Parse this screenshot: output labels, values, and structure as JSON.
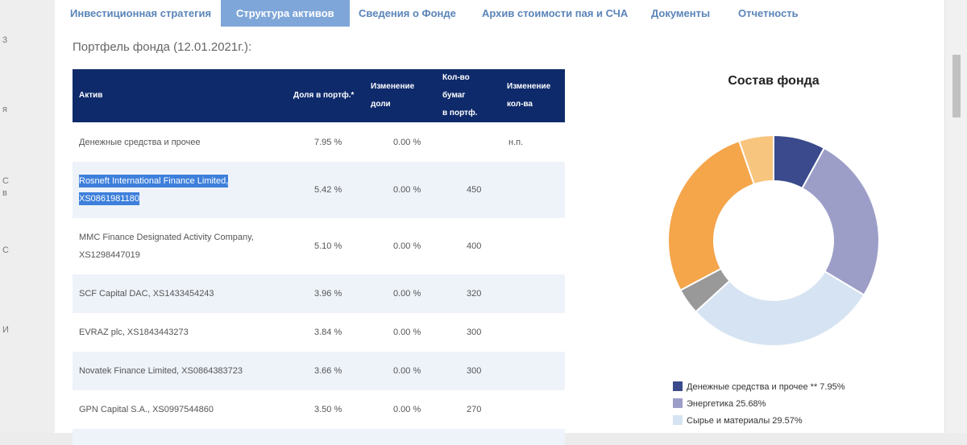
{
  "tabs": [
    {
      "label": "Инвестиционная стратегия",
      "active": false
    },
    {
      "label": "Структура активов",
      "active": true
    },
    {
      "label": "Сведения о Фонде",
      "active": false
    },
    {
      "label": "Архив стоимости пая и СЧА",
      "active": false
    },
    {
      "label": "Документы",
      "active": false
    },
    {
      "label": "Отчетность",
      "active": false
    }
  ],
  "portfolio_title": "Портфель фонда (12.01.2021г.):",
  "table": {
    "headers": {
      "asset": "Актив",
      "share": "Доля в портф.*",
      "share_change_1": "Изменение",
      "share_change_2": "доли",
      "count_1": "Кол-во бумаг",
      "count_2": "в портф.",
      "count_change_1": "Изменение",
      "count_change_2": "кол-ва"
    },
    "rows": [
      {
        "asset": "Денежные средства и прочее",
        "share": "7.95 %",
        "change": "0.00 %",
        "count": "",
        "count_change": "н.п."
      },
      {
        "asset_line1": "Rosneft International Finance Limited,",
        "asset_line2": "XS0861981180",
        "share": "5.42 %",
        "change": "0.00 %",
        "count": "450",
        "count_change": ""
      },
      {
        "asset_line1": "MMC Finance Designated Activity Company,",
        "asset_line2": "XS1298447019",
        "share": "5.10 %",
        "change": "0.00 %",
        "count": "400",
        "count_change": ""
      },
      {
        "asset": "SCF Capital DAC, XS1433454243",
        "share": "3.96 %",
        "change": "0.00 %",
        "count": "320",
        "count_change": ""
      },
      {
        "asset": "EVRAZ plc, XS1843443273",
        "share": "3.84 %",
        "change": "0.00 %",
        "count": "300",
        "count_change": ""
      },
      {
        "asset": "Novatek Finance Limited, XS0864383723",
        "share": "3.66 %",
        "change": "0.00 %",
        "count": "300",
        "count_change": ""
      },
      {
        "asset": "GPN Capital S.A., XS0997544860",
        "share": "3.50 %",
        "change": "0.00 %",
        "count": "270",
        "count_change": ""
      }
    ]
  },
  "chart_data": {
    "type": "pie",
    "title": "Состав фонда",
    "legend_position": "bottom",
    "slices": [
      {
        "label": "Денежные средства и прочее ** 7.95%",
        "value": 7.95,
        "color": "#3a4a8c"
      },
      {
        "label": "Энергетика 25.68%",
        "value": 25.68,
        "color": "#9c9ec8"
      },
      {
        "label": "Сырье и материалы 29.57%",
        "value": 29.57,
        "color": "#d6e3f2"
      },
      {
        "value": 4.0,
        "color": "#999999"
      },
      {
        "value": 27.5,
        "color": "#f5a54a"
      },
      {
        "value": 5.3,
        "color": "#f8c57f"
      }
    ]
  }
}
